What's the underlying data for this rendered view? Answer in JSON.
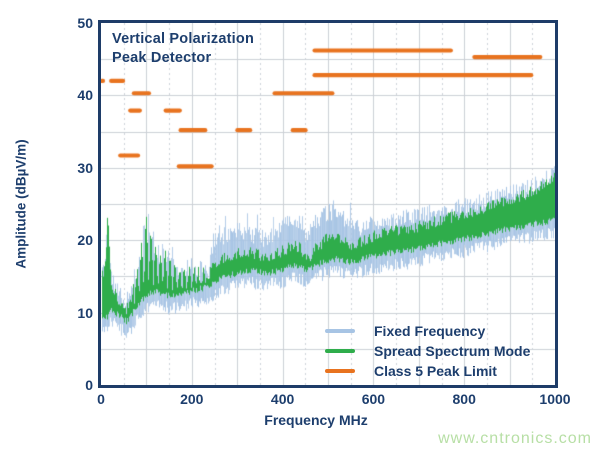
{
  "title_lines": [
    "Vertical Polarization",
    "Peak Detector"
  ],
  "watermark_text": "www.cntronics.com",
  "colors": {
    "navy": "#1d3e6d",
    "border": "#1e3c68",
    "orange": "#e8731f",
    "green": "#2fad4b",
    "blue": "#a7c4e4",
    "grid_solid": "#cbd0d6",
    "grid_dotted": "#ced3d9",
    "watermark_green": "#b7dfa5"
  },
  "chart_data": {
    "type": "line",
    "title": "Vertical Polarization Peak Detector",
    "xlabel": "Frequency MHz",
    "ylabel": "Amplitude (dBµV/m)",
    "xlim": [
      0,
      1000
    ],
    "ylim": [
      0,
      50
    ],
    "x_ticks": [
      0,
      200,
      400,
      600,
      800,
      1000
    ],
    "y_ticks": [
      0,
      10,
      20,
      30,
      40,
      50
    ],
    "grid": {
      "x_minor_step_mhz": 50,
      "x_major_step_mhz": 100,
      "y_step_db": 5,
      "on": true
    },
    "legend": {
      "position": "lower right",
      "entries": [
        {
          "label": "Fixed Frequency",
          "color": "#a7c4e4"
        },
        {
          "label": "Spread Spectrum Mode",
          "color": "#2fad4b"
        },
        {
          "label": "Class 5 Peak Limit",
          "color": "#e8731f"
        }
      ]
    },
    "comb_zone_mhz": [
      72,
      238
    ],
    "series": [
      {
        "name": "Fixed Frequency",
        "type": "noisy_band",
        "color": "#a7c4e4",
        "envelope": {
          "x_mhz": [
            2,
            8,
            14,
            22,
            40,
            55,
            68,
            80,
            90,
            100,
            110,
            120,
            135,
            150,
            165,
            180,
            195,
            210,
            225,
            238,
            240,
            260,
            285,
            310,
            335,
            360,
            385,
            410,
            435,
            455,
            470,
            495,
            520,
            545,
            570,
            600,
            630,
            660,
            690,
            720,
            750,
            780,
            810,
            840,
            870,
            900,
            930,
            960,
            985,
            1000
          ],
          "top_db": [
            16,
            16.5,
            23.8,
            15,
            12.5,
            11.3,
            13.5,
            16.8,
            19.8,
            23.3,
            21.3,
            18.8,
            18.3,
            18,
            16.6,
            16.1,
            16.6,
            16.1,
            16,
            16.1,
            18.5,
            20.3,
            21,
            21.3,
            20.6,
            20.2,
            21,
            22.3,
            22.4,
            20.2,
            22.6,
            23.8,
            23.9,
            22.2,
            21.8,
            22.4,
            22.8,
            22.9,
            23.2,
            23.8,
            24.2,
            24.5,
            24.9,
            25.3,
            25.9,
            26.4,
            26.9,
            27.7,
            28.6,
            29.3
          ]
        }
      },
      {
        "name": "Spread Spectrum Mode",
        "type": "noisy_band",
        "color": "#2fad4b",
        "envelope": {
          "x_mhz": [
            2,
            8,
            14,
            22,
            40,
            55,
            68,
            80,
            90,
            100,
            110,
            120,
            135,
            150,
            165,
            180,
            195,
            210,
            225,
            238,
            240,
            260,
            285,
            310,
            335,
            360,
            385,
            410,
            435,
            455,
            470,
            495,
            520,
            545,
            570,
            600,
            630,
            660,
            690,
            720,
            750,
            780,
            810,
            840,
            870,
            900,
            930,
            960,
            985,
            1000
          ],
          "top_db": [
            15,
            16,
            23.3,
            14,
            11.5,
            10.3,
            12.5,
            16,
            19,
            22.6,
            20.5,
            18,
            17.5,
            17.2,
            15.8,
            15.3,
            15.8,
            15.3,
            15.2,
            15.3,
            16.2,
            17.3,
            17.8,
            18.3,
            18.2,
            17.6,
            18.1,
            18.9,
            19.2,
            17.4,
            18.8,
            20.1,
            20.3,
            19.3,
            19.8,
            20.6,
            21.2,
            21.4,
            21.7,
            22.3,
            22.8,
            23.3,
            23.8,
            24.3,
            25.1,
            25.7,
            26.2,
            27,
            27.9,
            28.8
          ],
          "bottom_db": [
            9,
            9.3,
            9.5,
            10.5,
            9.5,
            8.8,
            9.8,
            11,
            11.8,
            12.5,
            12.8,
            13,
            12.6,
            12.3,
            12.4,
            12.6,
            12.9,
            13.2,
            13.4,
            13.6,
            13.8,
            14.6,
            15.2,
            15.6,
            15.8,
            15.4,
            15.7,
            16.2,
            16.5,
            15.8,
            16.4,
            17.2,
            17.4,
            17,
            17.3,
            17.8,
            18.2,
            18.4,
            18.7,
            19.2,
            19.6,
            19.9,
            20.3,
            20.7,
            21.2,
            21.6,
            21.9,
            22.3,
            22.6,
            22.8
          ]
        }
      },
      {
        "name": "Class 5 Peak Limit",
        "type": "limit_segments",
        "color": "#e8731f",
        "segments": [
          {
            "f_start": 0,
            "f_stop": 6,
            "level_db": 42
          },
          {
            "f_start": 18,
            "f_stop": 53,
            "level_db": 42
          },
          {
            "f_start": 38,
            "f_stop": 86,
            "level_db": 31.7
          },
          {
            "f_start": 60,
            "f_stop": 90,
            "level_db": 37.9
          },
          {
            "f_start": 68,
            "f_stop": 110,
            "level_db": 40.3
          },
          {
            "f_start": 138,
            "f_stop": 178,
            "level_db": 37.9
          },
          {
            "f_start": 167,
            "f_stop": 248,
            "level_db": 30.2
          },
          {
            "f_start": 171,
            "f_stop": 234,
            "level_db": 35.2
          },
          {
            "f_start": 296,
            "f_stop": 333,
            "level_db": 35.2
          },
          {
            "f_start": 378,
            "f_stop": 514,
            "level_db": 40.3
          },
          {
            "f_start": 418,
            "f_stop": 455,
            "level_db": 35.2
          },
          {
            "f_start": 466,
            "f_stop": 775,
            "level_db": 46.2
          },
          {
            "f_start": 466,
            "f_stop": 952,
            "level_db": 42.8
          },
          {
            "f_start": 818,
            "f_stop": 972,
            "level_db": 45.3
          }
        ]
      }
    ]
  }
}
